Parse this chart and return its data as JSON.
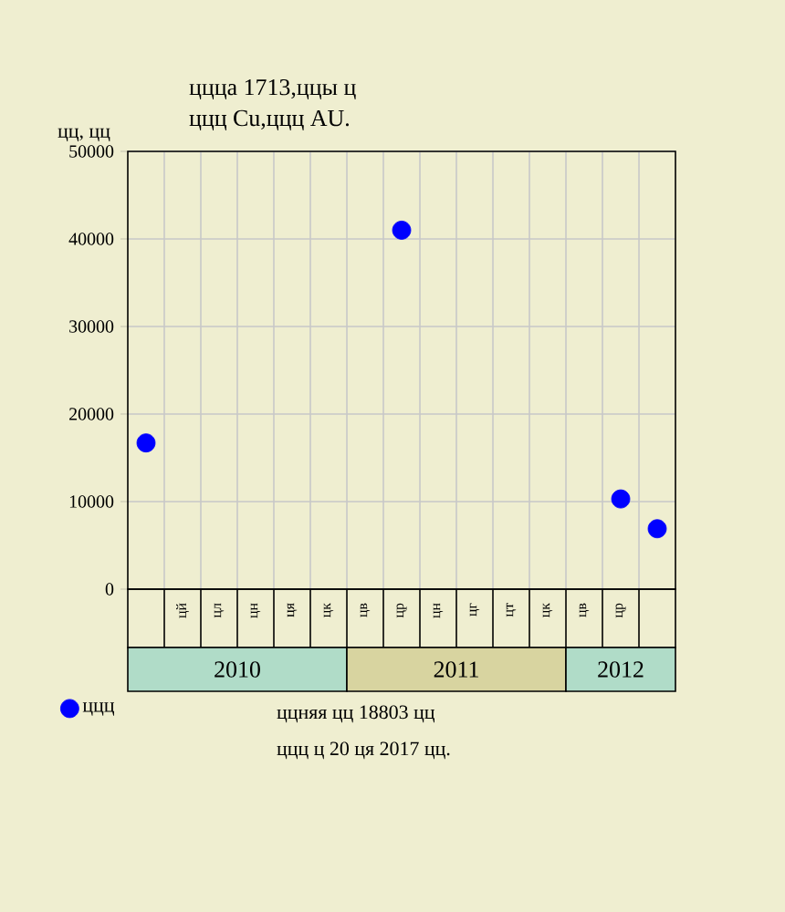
{
  "chart_data": {
    "type": "scatter",
    "title": "ццца 1713,ццы ц",
    "subtitle": "ццц Cu,ццц AU.",
    "ylabel": "цц, цц",
    "categories": [
      null,
      "цй",
      "цл",
      "цн",
      "ця",
      "цк",
      "цв",
      "цр",
      "цн",
      "цг",
      "цт",
      "цк",
      "цв",
      "цр",
      null
    ],
    "series": [
      {
        "name": "ццц",
        "color": "#0000ff",
        "values": [
          16700,
          null,
          null,
          null,
          null,
          null,
          null,
          41000,
          null,
          null,
          null,
          null,
          null,
          10300,
          6900
        ]
      }
    ],
    "ylim": [
      0,
      50000
    ],
    "yticks": [
      0,
      10000,
      20000,
      30000,
      40000,
      50000
    ],
    "annotations": [
      "2010",
      "2011",
      "2012",
      "ццняя цц 18803 цц",
      "ццц ц 20 ця 2017 цц."
    ],
    "grid": true,
    "legend": "bottom left",
    "marker": "circle"
  }
}
